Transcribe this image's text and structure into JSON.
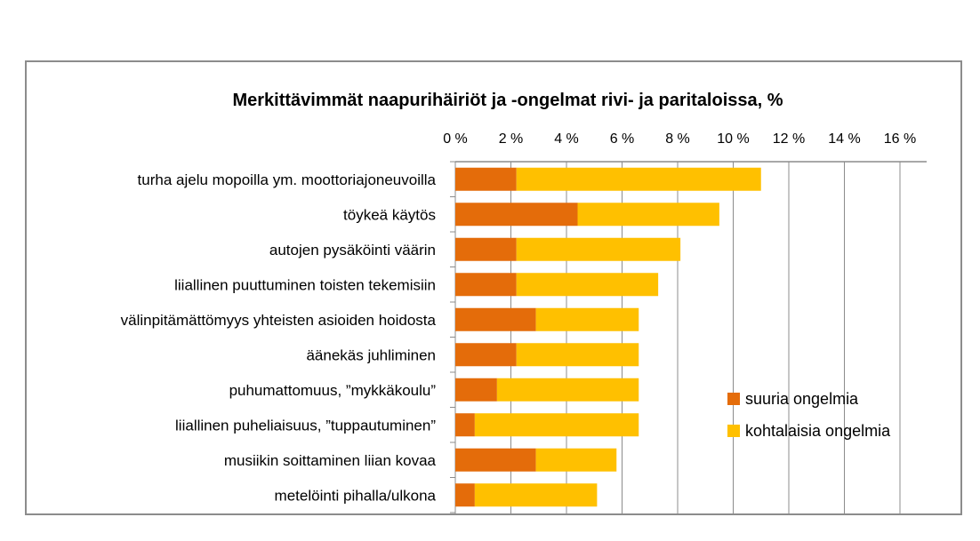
{
  "chart_data": {
    "type": "bar",
    "orientation": "horizontal",
    "stacked": true,
    "title": "Merkittävimmät naapurihäiriöt ja -ongelmat rivi- ja paritaloissa, %",
    "xlabel": "",
    "ylabel": "",
    "xlim": [
      0,
      16
    ],
    "ticks": [
      0,
      2,
      4,
      6,
      8,
      10,
      12,
      14,
      16
    ],
    "tick_labels": [
      "0 %",
      "2 %",
      "4 %",
      "6 %",
      "8 %",
      "10 %",
      "12 %",
      "14 %",
      "16 %"
    ],
    "grid": true,
    "legend_position": "right",
    "categories": [
      "turha ajelu mopoilla ym. moottoriajoneuvoilla",
      "töykeä käytös",
      "autojen pysäköinti väärin",
      "liiallinen puuttuminen toisten tekemisiin",
      "välinpitämättömyys yhteisten asioiden hoidosta",
      "äänekäs juhliminen",
      "puhumattomuus, ”mykkäkoulu”",
      "liiallinen puheliaisuus, ”tuppautuminen”",
      "musiikin soittaminen liian kovaa",
      "metelöinti pihalla/ulkona"
    ],
    "series": [
      {
        "name": "suuria ongelmia",
        "color": "#E46C0A",
        "values": [
          2.2,
          4.4,
          2.2,
          2.2,
          2.9,
          2.2,
          1.5,
          0.7,
          2.9,
          0.7
        ]
      },
      {
        "name": "kohtalaisia ongelmia",
        "color": "#FFC000",
        "values": [
          8.8,
          5.1,
          5.9,
          5.1,
          3.7,
          4.4,
          5.1,
          5.9,
          2.9,
          4.4
        ]
      }
    ]
  }
}
